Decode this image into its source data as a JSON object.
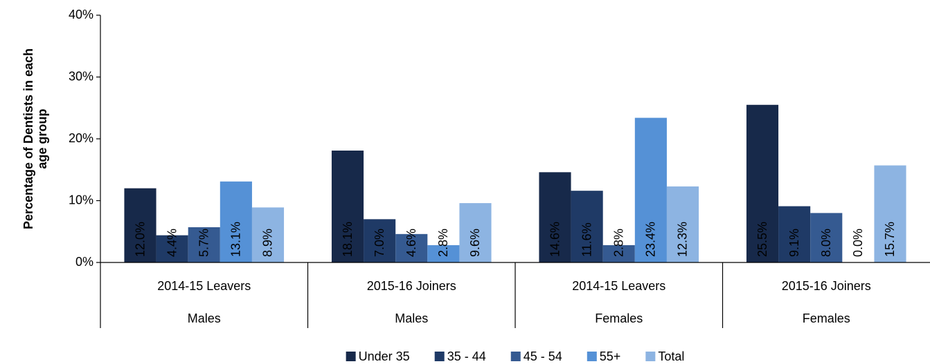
{
  "chart_data": {
    "type": "bar",
    "y_label_lines": [
      "Percentage of Dentists in each",
      "age group"
    ],
    "categories": [
      "2014-15 Leavers",
      "2015-16 Joiners",
      "2014-15 Leavers",
      "2015-16 Joiners"
    ],
    "category_groups": [
      "Males",
      "Males",
      "Females",
      "Females"
    ],
    "series": [
      {
        "name": "Under 35",
        "color": "#17294a",
        "values": [
          12.0,
          18.1,
          14.6,
          25.5
        ],
        "value_labels": [
          "12.0%",
          "18.1%",
          "14.6%",
          "25.5%"
        ]
      },
      {
        "name": "35 - 44",
        "color": "#1f3a66",
        "values": [
          4.4,
          7.0,
          11.6,
          9.1
        ],
        "value_labels": [
          "4.4%",
          "7.0%",
          "11.6%",
          "9.1%"
        ]
      },
      {
        "name": "45 - 54",
        "color": "#355a91",
        "values": [
          5.7,
          4.6,
          2.8,
          8.0
        ],
        "value_labels": [
          "5.7%",
          "4.6%",
          "2.8%",
          "8.0%"
        ]
      },
      {
        "name": "55+",
        "color": "#5591d6",
        "values": [
          13.1,
          2.8,
          23.4,
          0.0
        ],
        "value_labels": [
          "13.1%",
          "2.8%",
          "23.4%",
          "0.0%"
        ]
      },
      {
        "name": "Total",
        "color": "#8db4e2",
        "values": [
          8.9,
          9.6,
          12.3,
          15.7
        ],
        "value_labels": [
          "8.9%",
          "9.6%",
          "12.3%",
          "15.7%"
        ]
      }
    ],
    "ylim": [
      0,
      40
    ],
    "yticks": [
      {
        "value": 0,
        "label": "0%"
      },
      {
        "value": 10,
        "label": "10%"
      },
      {
        "value": 20,
        "label": "20%"
      },
      {
        "value": 30,
        "label": "30%"
      },
      {
        "value": 40,
        "label": "40%"
      }
    ],
    "grid": false,
    "legend": "bottom"
  }
}
